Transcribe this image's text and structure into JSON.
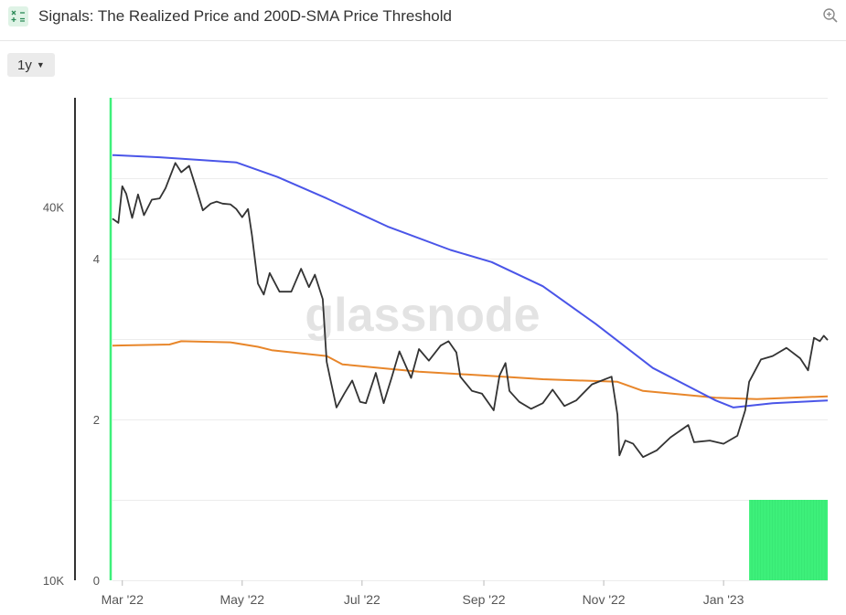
{
  "header": {
    "title": "Signals: The Realized Price and 200D-SMA Price Threshold",
    "icon": "calculator-icon",
    "zoom_icon": "zoom-in-icon"
  },
  "controls": {
    "resolution_label": "1y"
  },
  "watermark": "glassnode",
  "colors": {
    "price": "#333333",
    "realized_price": "#e8862a",
    "sma_threshold": "#4a55e8",
    "signal": "#3df07a",
    "left_axis_line": "#333333",
    "accent_line": "#3df07a"
  },
  "chart_data": {
    "type": "line",
    "title": "Signals: The Realized Price and 200D-SMA Price Threshold",
    "x_ticks": [
      "Mar '22",
      "May '22",
      "Jul '22",
      "Sep '22",
      "Nov '22",
      "Jan '23"
    ],
    "x_range": [
      "2022-02-24",
      "2023-02-23"
    ],
    "y_left": {
      "scale": "log",
      "ticks": [
        "10K",
        "40K"
      ],
      "range": [
        10000,
        60000
      ]
    },
    "y_right": {
      "ticks": [
        "0",
        "2",
        "4"
      ],
      "range": [
        0,
        6
      ]
    },
    "grid": true,
    "series": [
      {
        "key": "price",
        "axis": "left",
        "points": [
          [
            "2022-02-24",
            38300
          ],
          [
            "2022-02-27",
            37700
          ],
          [
            "2022-03-01",
            43200
          ],
          [
            "2022-03-03",
            42000
          ],
          [
            "2022-03-06",
            38400
          ],
          [
            "2022-03-09",
            41900
          ],
          [
            "2022-03-12",
            38800
          ],
          [
            "2022-03-16",
            41100
          ],
          [
            "2022-03-20",
            41300
          ],
          [
            "2022-03-23",
            42900
          ],
          [
            "2022-03-28",
            47100
          ],
          [
            "2022-03-31",
            45500
          ],
          [
            "2022-04-04",
            46600
          ],
          [
            "2022-04-07",
            43500
          ],
          [
            "2022-04-11",
            39500
          ],
          [
            "2022-04-15",
            40500
          ],
          [
            "2022-04-18",
            40800
          ],
          [
            "2022-04-21",
            40500
          ],
          [
            "2022-04-25",
            40400
          ],
          [
            "2022-04-28",
            39700
          ],
          [
            "2022-05-01",
            38500
          ],
          [
            "2022-05-04",
            39700
          ],
          [
            "2022-05-06",
            36000
          ],
          [
            "2022-05-09",
            30100
          ],
          [
            "2022-05-12",
            28900
          ],
          [
            "2022-05-15",
            31300
          ],
          [
            "2022-05-20",
            29200
          ],
          [
            "2022-05-26",
            29200
          ],
          [
            "2022-05-31",
            31800
          ],
          [
            "2022-06-04",
            29700
          ],
          [
            "2022-06-07",
            31100
          ],
          [
            "2022-06-11",
            28400
          ],
          [
            "2022-06-13",
            22500
          ],
          [
            "2022-06-15",
            21000
          ],
          [
            "2022-06-18",
            19000
          ],
          [
            "2022-06-22",
            20000
          ],
          [
            "2022-06-26",
            21000
          ],
          [
            "2022-06-30",
            19400
          ],
          [
            "2022-07-03",
            19300
          ],
          [
            "2022-07-08",
            21600
          ],
          [
            "2022-07-12",
            19300
          ],
          [
            "2022-07-16",
            21200
          ],
          [
            "2022-07-20",
            23400
          ],
          [
            "2022-07-26",
            21200
          ],
          [
            "2022-07-30",
            23600
          ],
          [
            "2022-08-04",
            22600
          ],
          [
            "2022-08-10",
            23900
          ],
          [
            "2022-08-14",
            24300
          ],
          [
            "2022-08-18",
            23300
          ],
          [
            "2022-08-20",
            21300
          ],
          [
            "2022-08-26",
            20200
          ],
          [
            "2022-08-31",
            20000
          ],
          [
            "2022-09-06",
            18800
          ],
          [
            "2022-09-09",
            21400
          ],
          [
            "2022-09-12",
            22400
          ],
          [
            "2022-09-14",
            20200
          ],
          [
            "2022-09-19",
            19400
          ],
          [
            "2022-09-25",
            18900
          ],
          [
            "2022-10-01",
            19300
          ],
          [
            "2022-10-06",
            20300
          ],
          [
            "2022-10-12",
            19100
          ],
          [
            "2022-10-18",
            19500
          ],
          [
            "2022-10-26",
            20700
          ],
          [
            "2022-11-05",
            21300
          ],
          [
            "2022-11-08",
            18500
          ],
          [
            "2022-11-09",
            15900
          ],
          [
            "2022-11-12",
            16800
          ],
          [
            "2022-11-16",
            16600
          ],
          [
            "2022-11-21",
            15800
          ],
          [
            "2022-11-28",
            16200
          ],
          [
            "2022-12-05",
            17000
          ],
          [
            "2022-12-14",
            17800
          ],
          [
            "2022-12-17",
            16700
          ],
          [
            "2022-12-25",
            16800
          ],
          [
            "2023-01-01",
            16600
          ],
          [
            "2023-01-08",
            17100
          ],
          [
            "2023-01-12",
            18800
          ],
          [
            "2023-01-14",
            20900
          ],
          [
            "2023-01-20",
            22700
          ],
          [
            "2023-01-26",
            23000
          ],
          [
            "2023-02-02",
            23700
          ],
          [
            "2023-02-09",
            22800
          ],
          [
            "2023-02-13",
            21800
          ],
          [
            "2023-02-16",
            24600
          ],
          [
            "2023-02-19",
            24300
          ],
          [
            "2023-02-21",
            24800
          ],
          [
            "2023-02-23",
            24400
          ]
        ]
      },
      {
        "key": "sma_threshold",
        "axis": "left",
        "points": [
          [
            "2022-02-24",
            48500
          ],
          [
            "2022-03-20",
            48100
          ],
          [
            "2022-04-11",
            47600
          ],
          [
            "2022-04-28",
            47200
          ],
          [
            "2022-05-19",
            44700
          ],
          [
            "2022-06-13",
            41300
          ],
          [
            "2022-07-14",
            37200
          ],
          [
            "2022-08-15",
            34100
          ],
          [
            "2022-09-05",
            32600
          ],
          [
            "2022-10-01",
            29800
          ],
          [
            "2022-10-28",
            25900
          ],
          [
            "2022-11-26",
            22000
          ],
          [
            "2022-12-28",
            19500
          ],
          [
            "2023-01-06",
            19000
          ],
          [
            "2023-01-26",
            19300
          ],
          [
            "2023-02-23",
            19500
          ]
        ]
      },
      {
        "key": "realized_price",
        "axis": "left",
        "points": [
          [
            "2022-02-24",
            23900
          ],
          [
            "2022-03-25",
            24000
          ],
          [
            "2022-03-31",
            24300
          ],
          [
            "2022-04-25",
            24200
          ],
          [
            "2022-05-09",
            23800
          ],
          [
            "2022-05-16",
            23500
          ],
          [
            "2022-06-13",
            23000
          ],
          [
            "2022-06-21",
            22300
          ],
          [
            "2022-07-30",
            21700
          ],
          [
            "2022-08-31",
            21400
          ],
          [
            "2022-10-01",
            21100
          ],
          [
            "2022-11-08",
            20900
          ],
          [
            "2022-11-21",
            20200
          ],
          [
            "2022-12-28",
            19700
          ],
          [
            "2023-01-18",
            19600
          ],
          [
            "2023-02-23",
            19800
          ]
        ]
      },
      {
        "key": "signal",
        "axis": "right",
        "type": "bar",
        "points": [
          [
            "2023-01-14",
            1
          ],
          [
            "2023-01-31",
            1
          ],
          [
            "2023-02-23",
            1
          ]
        ]
      }
    ]
  }
}
